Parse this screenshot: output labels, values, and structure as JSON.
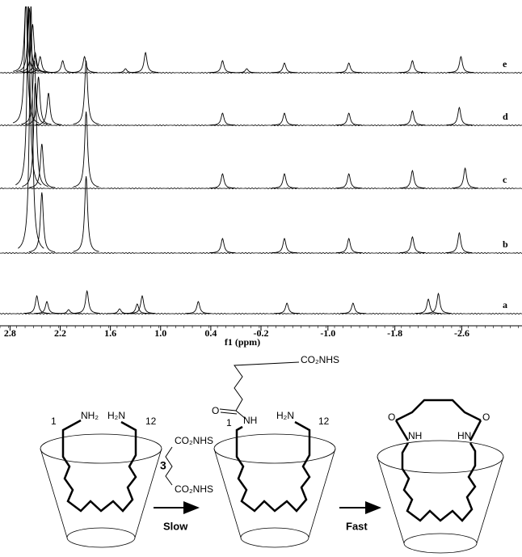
{
  "chart_data": {
    "type": "nmr_stack",
    "x_label": "f1 (ppm)",
    "xlim": [
      2.92,
      -3.32
    ],
    "xticks": [
      2.8,
      2.2,
      1.6,
      {
        "value": 1,
        "label": "1.0"
      },
      0.4,
      -0.2,
      {
        "value": -1,
        "label": "-1.0"
      },
      -1.8,
      -2.6
    ],
    "color": "#000000",
    "series": [
      {
        "name": "e",
        "x": [
          2.61,
          2.57,
          2.53,
          2.5,
          2.44,
          2.17,
          1.91,
          1.42,
          1.18,
          0.26,
          -0.03,
          -0.48,
          -1.25,
          -2.01,
          -2.59
        ],
        "values": [
          90,
          80,
          60,
          25,
          20,
          15,
          20,
          5,
          25,
          15,
          5,
          12,
          12,
          15,
          20
        ]
      },
      {
        "name": "d",
        "x": [
          2.61,
          2.51,
          2.46,
          2.34,
          1.89,
          0.26,
          -0.48,
          -1.25,
          -2.01,
          -2.57
        ],
        "values": [
          160,
          80,
          60,
          40,
          80,
          15,
          15,
          15,
          18,
          22
        ]
      },
      {
        "name": "c",
        "x": [
          2.58,
          2.5,
          2.42,
          1.89,
          0.26,
          -0.48,
          -1.25,
          -2.01,
          -2.64
        ],
        "values": [
          230,
          130,
          55,
          95,
          18,
          18,
          18,
          22,
          25
        ]
      },
      {
        "name": "b",
        "x": [
          2.55,
          2.42,
          1.89,
          0.26,
          -0.48,
          -1.25,
          -2.01,
          -2.57
        ],
        "values": [
          310,
          75,
          95,
          18,
          18,
          18,
          20,
          25
        ]
      },
      {
        "name": "a",
        "x": [
          2.48,
          2.36,
          2.1,
          1.88,
          1.49,
          1.28,
          1.22,
          0.55,
          -0.51,
          -1.3,
          -2.2,
          -2.32
        ],
        "values": [
          22,
          15,
          5,
          28,
          6,
          12,
          22,
          15,
          13,
          13,
          18,
          25
        ]
      }
    ]
  },
  "scheme": {
    "left": [
      "1",
      "NH₂",
      "H₂N",
      "12"
    ],
    "reagent": [
      "CO₂NHS",
      "3",
      "CO₂NHS"
    ],
    "arrows": [
      "Slow",
      "Fast"
    ],
    "middle": [
      "CO₂NHS",
      "O",
      "NH",
      "1",
      "H₂N",
      "12"
    ],
    "right": [
      "O",
      "NH",
      "HN",
      "O"
    ]
  }
}
